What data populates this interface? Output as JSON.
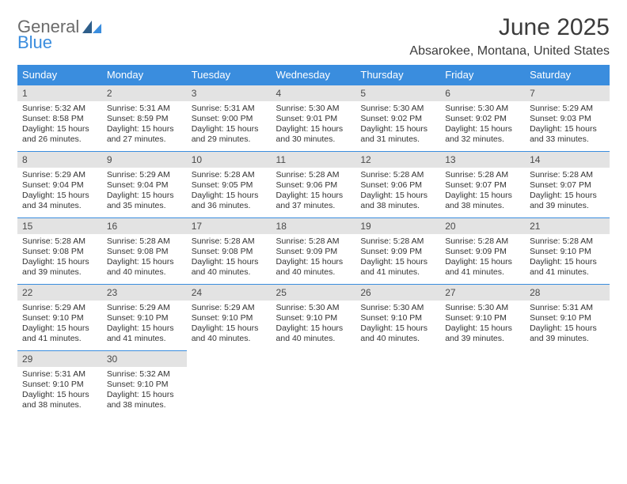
{
  "brand": {
    "part1": "General",
    "part2": "Blue"
  },
  "title": "June 2025",
  "location": "Absarokee, Montana, United States",
  "colors": {
    "accent": "#3a8dde",
    "dayband": "#e3e3e3",
    "text": "#333333",
    "bg": "#ffffff"
  },
  "weekdays": [
    "Sunday",
    "Monday",
    "Tuesday",
    "Wednesday",
    "Thursday",
    "Friday",
    "Saturday"
  ],
  "weeks": [
    [
      {
        "n": "1",
        "sr": "Sunrise: 5:32 AM",
        "ss": "Sunset: 8:58 PM",
        "d1": "Daylight: 15 hours",
        "d2": "and 26 minutes."
      },
      {
        "n": "2",
        "sr": "Sunrise: 5:31 AM",
        "ss": "Sunset: 8:59 PM",
        "d1": "Daylight: 15 hours",
        "d2": "and 27 minutes."
      },
      {
        "n": "3",
        "sr": "Sunrise: 5:31 AM",
        "ss": "Sunset: 9:00 PM",
        "d1": "Daylight: 15 hours",
        "d2": "and 29 minutes."
      },
      {
        "n": "4",
        "sr": "Sunrise: 5:30 AM",
        "ss": "Sunset: 9:01 PM",
        "d1": "Daylight: 15 hours",
        "d2": "and 30 minutes."
      },
      {
        "n": "5",
        "sr": "Sunrise: 5:30 AM",
        "ss": "Sunset: 9:02 PM",
        "d1": "Daylight: 15 hours",
        "d2": "and 31 minutes."
      },
      {
        "n": "6",
        "sr": "Sunrise: 5:30 AM",
        "ss": "Sunset: 9:02 PM",
        "d1": "Daylight: 15 hours",
        "d2": "and 32 minutes."
      },
      {
        "n": "7",
        "sr": "Sunrise: 5:29 AM",
        "ss": "Sunset: 9:03 PM",
        "d1": "Daylight: 15 hours",
        "d2": "and 33 minutes."
      }
    ],
    [
      {
        "n": "8",
        "sr": "Sunrise: 5:29 AM",
        "ss": "Sunset: 9:04 PM",
        "d1": "Daylight: 15 hours",
        "d2": "and 34 minutes."
      },
      {
        "n": "9",
        "sr": "Sunrise: 5:29 AM",
        "ss": "Sunset: 9:04 PM",
        "d1": "Daylight: 15 hours",
        "d2": "and 35 minutes."
      },
      {
        "n": "10",
        "sr": "Sunrise: 5:28 AM",
        "ss": "Sunset: 9:05 PM",
        "d1": "Daylight: 15 hours",
        "d2": "and 36 minutes."
      },
      {
        "n": "11",
        "sr": "Sunrise: 5:28 AM",
        "ss": "Sunset: 9:06 PM",
        "d1": "Daylight: 15 hours",
        "d2": "and 37 minutes."
      },
      {
        "n": "12",
        "sr": "Sunrise: 5:28 AM",
        "ss": "Sunset: 9:06 PM",
        "d1": "Daylight: 15 hours",
        "d2": "and 38 minutes."
      },
      {
        "n": "13",
        "sr": "Sunrise: 5:28 AM",
        "ss": "Sunset: 9:07 PM",
        "d1": "Daylight: 15 hours",
        "d2": "and 38 minutes."
      },
      {
        "n": "14",
        "sr": "Sunrise: 5:28 AM",
        "ss": "Sunset: 9:07 PM",
        "d1": "Daylight: 15 hours",
        "d2": "and 39 minutes."
      }
    ],
    [
      {
        "n": "15",
        "sr": "Sunrise: 5:28 AM",
        "ss": "Sunset: 9:08 PM",
        "d1": "Daylight: 15 hours",
        "d2": "and 39 minutes."
      },
      {
        "n": "16",
        "sr": "Sunrise: 5:28 AM",
        "ss": "Sunset: 9:08 PM",
        "d1": "Daylight: 15 hours",
        "d2": "and 40 minutes."
      },
      {
        "n": "17",
        "sr": "Sunrise: 5:28 AM",
        "ss": "Sunset: 9:08 PM",
        "d1": "Daylight: 15 hours",
        "d2": "and 40 minutes."
      },
      {
        "n": "18",
        "sr": "Sunrise: 5:28 AM",
        "ss": "Sunset: 9:09 PM",
        "d1": "Daylight: 15 hours",
        "d2": "and 40 minutes."
      },
      {
        "n": "19",
        "sr": "Sunrise: 5:28 AM",
        "ss": "Sunset: 9:09 PM",
        "d1": "Daylight: 15 hours",
        "d2": "and 41 minutes."
      },
      {
        "n": "20",
        "sr": "Sunrise: 5:28 AM",
        "ss": "Sunset: 9:09 PM",
        "d1": "Daylight: 15 hours",
        "d2": "and 41 minutes."
      },
      {
        "n": "21",
        "sr": "Sunrise: 5:28 AM",
        "ss": "Sunset: 9:10 PM",
        "d1": "Daylight: 15 hours",
        "d2": "and 41 minutes."
      }
    ],
    [
      {
        "n": "22",
        "sr": "Sunrise: 5:29 AM",
        "ss": "Sunset: 9:10 PM",
        "d1": "Daylight: 15 hours",
        "d2": "and 41 minutes."
      },
      {
        "n": "23",
        "sr": "Sunrise: 5:29 AM",
        "ss": "Sunset: 9:10 PM",
        "d1": "Daylight: 15 hours",
        "d2": "and 41 minutes."
      },
      {
        "n": "24",
        "sr": "Sunrise: 5:29 AM",
        "ss": "Sunset: 9:10 PM",
        "d1": "Daylight: 15 hours",
        "d2": "and 40 minutes."
      },
      {
        "n": "25",
        "sr": "Sunrise: 5:30 AM",
        "ss": "Sunset: 9:10 PM",
        "d1": "Daylight: 15 hours",
        "d2": "and 40 minutes."
      },
      {
        "n": "26",
        "sr": "Sunrise: 5:30 AM",
        "ss": "Sunset: 9:10 PM",
        "d1": "Daylight: 15 hours",
        "d2": "and 40 minutes."
      },
      {
        "n": "27",
        "sr": "Sunrise: 5:30 AM",
        "ss": "Sunset: 9:10 PM",
        "d1": "Daylight: 15 hours",
        "d2": "and 39 minutes."
      },
      {
        "n": "28",
        "sr": "Sunrise: 5:31 AM",
        "ss": "Sunset: 9:10 PM",
        "d1": "Daylight: 15 hours",
        "d2": "and 39 minutes."
      }
    ],
    [
      {
        "n": "29",
        "sr": "Sunrise: 5:31 AM",
        "ss": "Sunset: 9:10 PM",
        "d1": "Daylight: 15 hours",
        "d2": "and 38 minutes."
      },
      {
        "n": "30",
        "sr": "Sunrise: 5:32 AM",
        "ss": "Sunset: 9:10 PM",
        "d1": "Daylight: 15 hours",
        "d2": "and 38 minutes."
      },
      null,
      null,
      null,
      null,
      null
    ]
  ]
}
